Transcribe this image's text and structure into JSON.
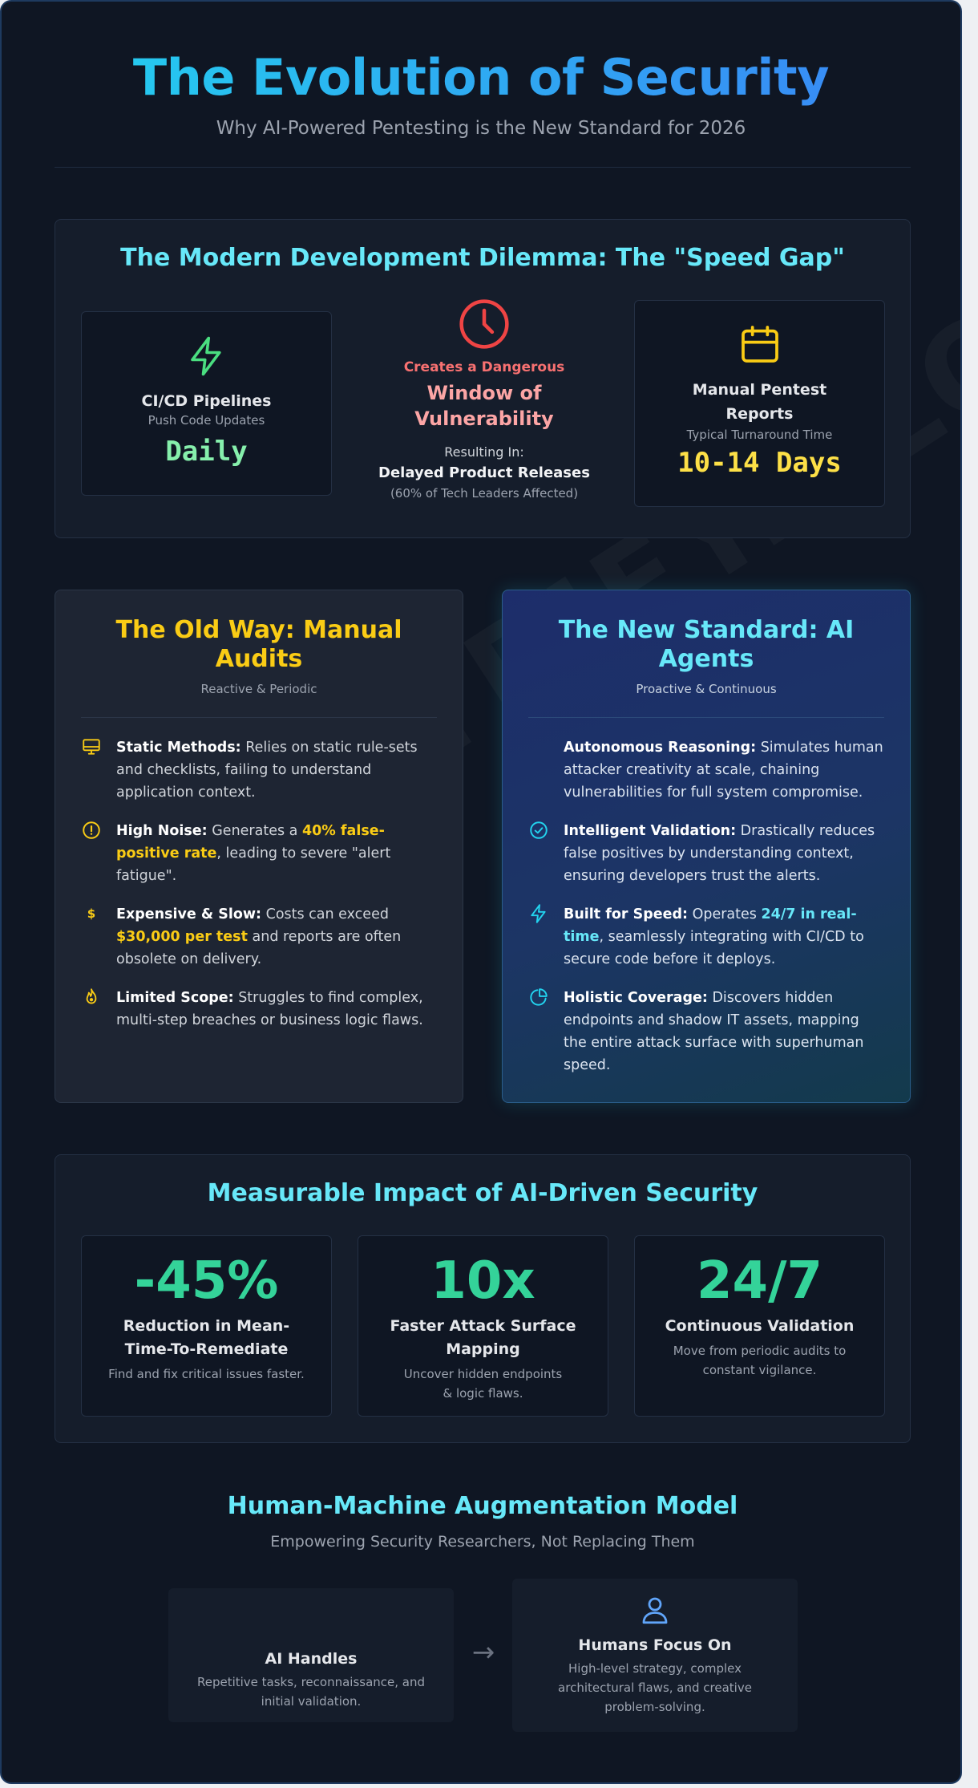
{
  "header": {
    "title": "The Evolution of Security",
    "subtitle": "Why AI-Powered Pentesting is the New Standard for 2026"
  },
  "watermark": "PENETRIFY.CLOUD",
  "dilemma": {
    "title": "The Modern Development Dilemma: The \"Speed Gap\"",
    "left": {
      "icon": "lightning-icon",
      "title": "CI/CD Pipelines",
      "caption": "Push Code Updates",
      "value": "Daily"
    },
    "middle": {
      "icon": "clock-icon",
      "kicker": "Creates a Dangerous",
      "headline": "Window of Vulnerability",
      "result_label": "Resulting In:",
      "result": "Delayed Product Releases",
      "note": "(60% of Tech Leaders Affected)"
    },
    "right": {
      "icon": "calendar-icon",
      "title": "Manual Pentest Reports",
      "caption": "Typical Turnaround Time",
      "value": "10-14 Days"
    }
  },
  "old_way": {
    "title": "The Old Way: Manual Audits",
    "tagline": "Reactive & Periodic",
    "items": [
      {
        "icon": "monitor-icon",
        "bold": "Static Methods:",
        "text": " Relies on static rule-sets and checklists, failing to understand application context."
      },
      {
        "icon": "alert-circle-icon",
        "bold": "High Noise:",
        "pre": " Generates a ",
        "highlight": "40% false-positive rate",
        "post": ", leading to severe \"alert fatigue\"."
      },
      {
        "icon": "dollar-icon",
        "bold": "Expensive & Slow:",
        "pre": " Costs can exceed ",
        "highlight": "$30,000 per test",
        "post": " and reports are often obsolete on delivery."
      },
      {
        "icon": "flame-icon",
        "bold": "Limited Scope:",
        "text": " Struggles to find complex, multi-step breaches or business logic flaws."
      }
    ]
  },
  "new_way": {
    "title": "The New Standard: AI Agents",
    "tagline": "Proactive & Continuous",
    "items": [
      {
        "icon": "",
        "bold": "Autonomous Reasoning:",
        "text": " Simulates human attacker creativity at scale, chaining vulnerabilities for full system compromise."
      },
      {
        "icon": "check-circle-icon",
        "bold": "Intelligent Validation:",
        "text": " Drastically reduces false positives by understanding context, ensuring developers trust the alerts."
      },
      {
        "icon": "lightning-icon",
        "bold": "Built for Speed:",
        "pre": " Operates ",
        "highlight": "24/7 in real-time",
        "post": ", seamlessly integrating with CI/CD to secure code before it deploys."
      },
      {
        "icon": "pie-chart-icon",
        "bold": "Holistic Coverage:",
        "text": " Discovers hidden endpoints and shadow IT assets, mapping the entire attack surface with superhuman speed."
      }
    ]
  },
  "impact": {
    "title": "Measurable Impact of AI-Driven Security",
    "stats": [
      {
        "value": "-45%",
        "label": "Reduction in Mean-Time-To-Remediate",
        "desc": "Find and fix critical issues faster."
      },
      {
        "value": "10x",
        "label": "Faster Attack Surface Mapping",
        "desc": "Uncover hidden endpoints & logic flaws."
      },
      {
        "value": "24/7",
        "label": "Continuous Validation",
        "desc": "Move from periodic audits to constant vigilance."
      }
    ]
  },
  "augmentation": {
    "title": "Human-Machine Augmentation Model",
    "subtitle": "Empowering Security Researchers, Not Replacing Them",
    "ai": {
      "title": "AI Handles",
      "desc": "Repetitive tasks, reconnaissance, and initial validation."
    },
    "arrow": "→",
    "human": {
      "icon": "user-icon",
      "title": "Humans Focus On",
      "desc": "High-level strategy, complex architectural flaws, and creative problem-solving."
    }
  },
  "colors": {
    "background": "#0f1623",
    "accent_cyan": "#67e8f9",
    "accent_yellow": "#facc15",
    "accent_green": "#34d399",
    "danger_red": "#ef4444"
  }
}
